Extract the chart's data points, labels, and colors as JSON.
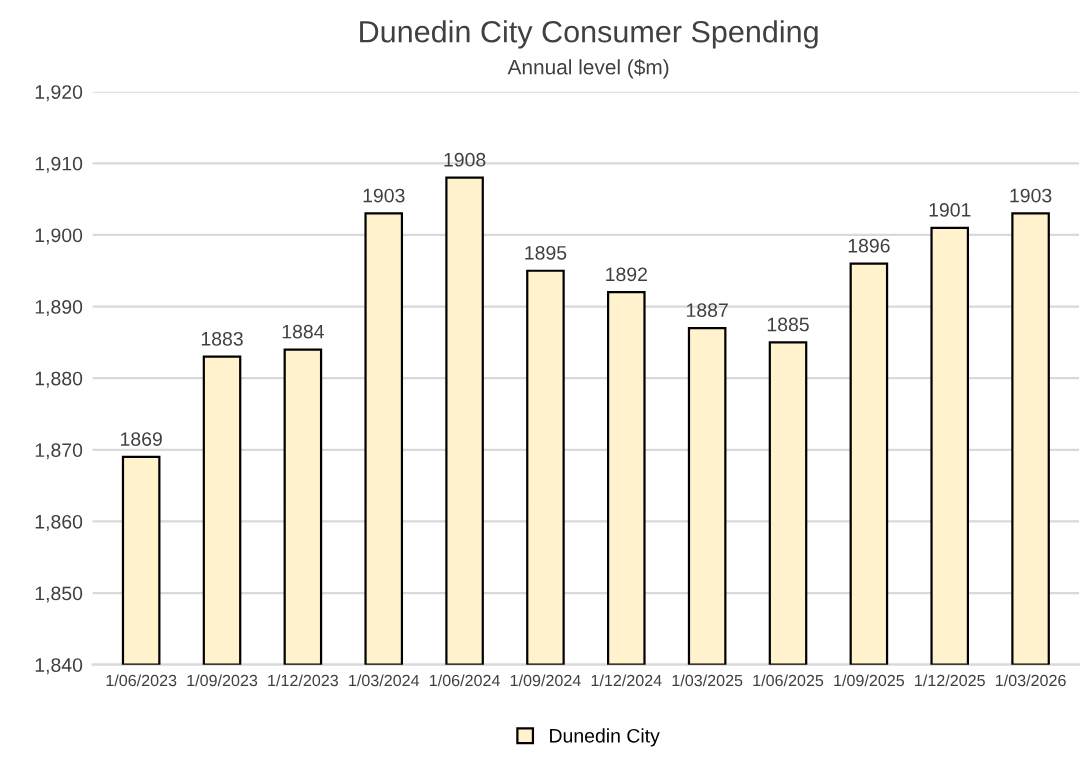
{
  "chart_data": {
    "type": "bar",
    "title": "Dunedin City Consumer Spending",
    "subtitle": "Annual level ($m)",
    "categories": [
      "1/06/2023",
      "1/09/2023",
      "1/12/2023",
      "1/03/2024",
      "1/06/2024",
      "1/09/2024",
      "1/12/2024",
      "1/03/2025",
      "1/06/2025",
      "1/09/2025",
      "1/12/2025",
      "1/03/2026"
    ],
    "series": [
      {
        "name": "Dunedin City",
        "color": "#fff2cc",
        "values": [
          1869,
          1883,
          1884,
          1903,
          1908,
          1895,
          1892,
          1887,
          1885,
          1896,
          1901,
          1903
        ]
      }
    ],
    "ylim": [
      1840,
      1920
    ],
    "yticks": [
      {
        "value": 1840,
        "label": "1,840"
      },
      {
        "value": 1850,
        "label": "1,850"
      },
      {
        "value": 1860,
        "label": "1,860"
      },
      {
        "value": 1870,
        "label": "1,870"
      },
      {
        "value": 1880,
        "label": "1,880"
      },
      {
        "value": 1890,
        "label": "1,890"
      },
      {
        "value": 1900,
        "label": "1,900"
      },
      {
        "value": 1910,
        "label": "1,910"
      },
      {
        "value": 1920,
        "label": "1,920"
      }
    ],
    "grid": "y",
    "legend": "bottom",
    "data_labels": true
  }
}
